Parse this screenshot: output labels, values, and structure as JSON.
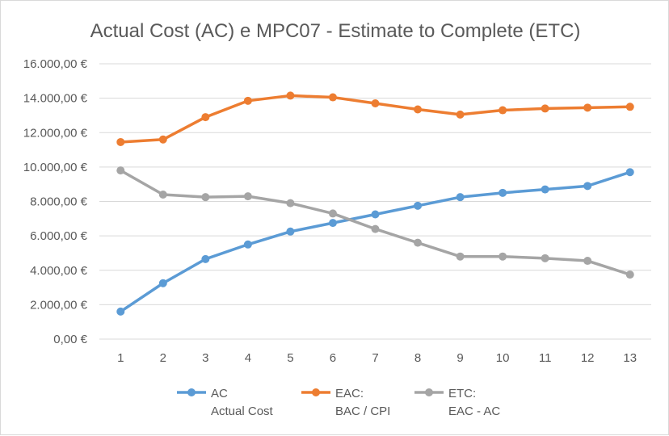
{
  "chart_data": {
    "type": "line",
    "title": "Actual Cost (AC) e MPC07 - Estimate to Complete (ETC)",
    "x": [
      "1",
      "2",
      "3",
      "4",
      "5",
      "6",
      "7",
      "8",
      "9",
      "10",
      "11",
      "12",
      "13"
    ],
    "ylim": [
      0,
      16000
    ],
    "y_ticks": [
      {
        "value": 0,
        "label": "0,00 €"
      },
      {
        "value": 2000,
        "label": "2.000,00 €"
      },
      {
        "value": 4000,
        "label": "4.000,00 €"
      },
      {
        "value": 6000,
        "label": "6.000,00 €"
      },
      {
        "value": 8000,
        "label": "8.000,00 €"
      },
      {
        "value": 10000,
        "label": "10.000,00 €"
      },
      {
        "value": 12000,
        "label": "12.000,00 €"
      },
      {
        "value": 14000,
        "label": "14.000,00 €"
      },
      {
        "value": 16000,
        "label": "16.000,00 €"
      }
    ],
    "grid": true,
    "legend_position": "bottom",
    "series": [
      {
        "key": "ac",
        "name_line1": "AC",
        "name_line2": "Actual Cost",
        "color": "#5b9bd5",
        "values": [
          1600,
          3250,
          4650,
          5500,
          6250,
          6750,
          7250,
          7750,
          8250,
          8500,
          8700,
          8900,
          9700
        ]
      },
      {
        "key": "eac",
        "name_line1": "EAC:",
        "name_line2": "BAC / CPI",
        "color": "#ed7d31",
        "values": [
          11450,
          11600,
          12900,
          13850,
          14150,
          14050,
          13700,
          13350,
          13050,
          13300,
          13400,
          13450,
          13500
        ]
      },
      {
        "key": "etc",
        "name_line1": "ETC:",
        "name_line2": "EAC - AC",
        "color": "#a5a5a5",
        "values": [
          9800,
          8400,
          8250,
          8300,
          7900,
          7300,
          6400,
          5600,
          4800,
          4800,
          4700,
          4550,
          3750
        ]
      }
    ]
  }
}
